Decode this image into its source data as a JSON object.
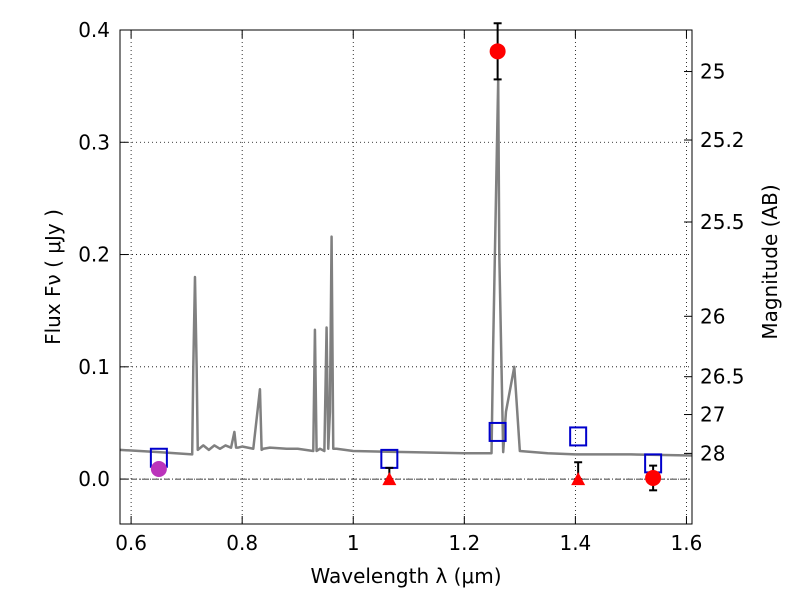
{
  "chart_data": {
    "type": "scatter",
    "title": "",
    "xlabel": "Wavelength  λ (μm)",
    "ylabel": "Flux  Fν  ( μJy )",
    "y2label": "Magnitude (AB)",
    "xlim": [
      0.58,
      1.61
    ],
    "ylim": [
      -0.04,
      0.4
    ],
    "grid": true,
    "x_ticks": [
      0.6,
      0.8,
      1.0,
      1.2,
      1.4,
      1.6
    ],
    "x_tick_labels": [
      "0.6",
      "0.8",
      "1",
      "1.2",
      "1.4",
      "1.6"
    ],
    "y_ticks": [
      0.0,
      0.1,
      0.2,
      0.3,
      0.4
    ],
    "y_tick_labels": [
      "0.0",
      "0.1",
      "0.2",
      "0.3",
      "0.4"
    ],
    "mag_ticks": [
      {
        "label": "25",
        "flux": 0.363
      },
      {
        "label": "25.2",
        "flux": 0.302
      },
      {
        "label": "25.5",
        "flux": 0.229
      },
      {
        "label": "26",
        "flux": 0.145
      },
      {
        "label": "26.5",
        "flux": 0.0912
      },
      {
        "label": "27",
        "flux": 0.0575
      },
      {
        "label": "28",
        "flux": 0.0229
      }
    ],
    "series": [
      {
        "marker": "line",
        "color": "#808080",
        "x": [
          0.58,
          0.65,
          0.71,
          0.712,
          0.715,
          0.718,
          0.72,
          0.73,
          0.74,
          0.75,
          0.76,
          0.77,
          0.78,
          0.786,
          0.789,
          0.792,
          0.8,
          0.82,
          0.832,
          0.835,
          0.838,
          0.85,
          0.88,
          0.9,
          0.928,
          0.931,
          0.934,
          0.94,
          0.948,
          0.952,
          0.955,
          0.958,
          0.961,
          0.964,
          0.97,
          1.0,
          1.1,
          1.2,
          1.249,
          1.252,
          1.261,
          1.263,
          1.27,
          1.275,
          1.29,
          1.3,
          1.35,
          1.4,
          1.5,
          1.61
        ],
        "y": [
          0.026,
          0.024,
          0.022,
          0.1,
          0.18,
          0.1,
          0.026,
          0.03,
          0.026,
          0.03,
          0.027,
          0.03,
          0.028,
          0.042,
          0.028,
          0.028,
          0.029,
          0.027,
          0.08,
          0.026,
          0.027,
          0.028,
          0.027,
          0.027,
          0.025,
          0.133,
          0.025,
          0.027,
          0.025,
          0.135,
          0.027,
          0.06,
          0.216,
          0.027,
          0.027,
          0.025,
          0.024,
          0.023,
          0.023,
          0.12,
          0.355,
          0.2,
          0.024,
          0.06,
          0.1,
          0.025,
          0.023,
          0.022,
          0.022,
          0.021
        ]
      },
      {
        "marker": "square",
        "color": "#0000cc",
        "x": [
          0.65,
          1.065,
          1.26,
          1.405,
          1.54
        ],
        "y": [
          0.019,
          0.018,
          0.042,
          0.038,
          0.014
        ]
      },
      {
        "marker": "circle",
        "color": "#ff0000",
        "x": [
          1.26,
          1.54
        ],
        "y": [
          0.381,
          0.001
        ],
        "yerr": [
          0.025,
          0.011
        ]
      },
      {
        "marker": "circle",
        "color": "#bb33bb",
        "x": [
          0.65
        ],
        "y": [
          0.009
        ],
        "yerr": [
          0.004
        ]
      },
      {
        "marker": "triangle",
        "color": "#ff0000",
        "x": [
          1.065,
          1.405
        ],
        "y": [
          0.0,
          0.0
        ],
        "yerr_low": [
          0.0,
          0.0
        ],
        "yerr_high": [
          0.01,
          0.015
        ]
      }
    ]
  }
}
